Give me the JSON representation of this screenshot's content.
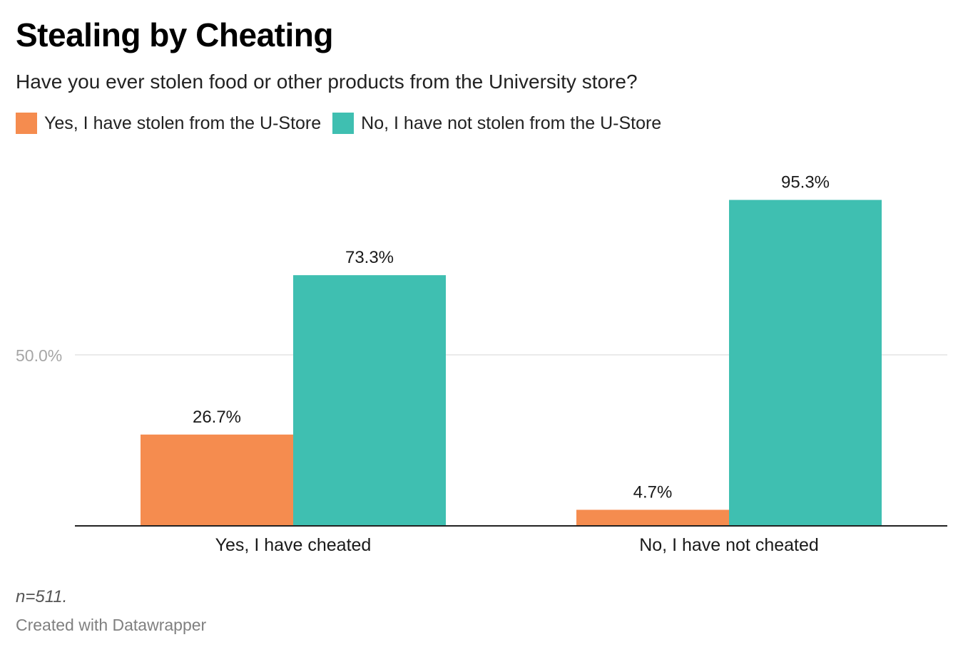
{
  "header": {
    "title": "Stealing by Cheating",
    "subtitle": "Have you ever stolen food or other products from the University store?"
  },
  "footer": {
    "note": "n=511.",
    "credit": "Created with Datawrapper"
  },
  "chart_data": {
    "type": "bar",
    "orientation": "vertical-grouped",
    "categories": [
      "Yes, I have cheated",
      "No, I have not cheated"
    ],
    "series": [
      {
        "name": "Yes, I have stolen from the U-Store",
        "color": "#f58c4f",
        "values": [
          26.7,
          4.7
        ],
        "labels": [
          "26.7%",
          "4.7%"
        ]
      },
      {
        "name": "No, I have not stolen from the U-Store",
        "color": "#3fbfb1",
        "values": [
          73.3,
          95.3
        ],
        "labels": [
          "73.3%",
          "95.3%"
        ]
      }
    ],
    "ylim": [
      0,
      100
    ],
    "yticks": [
      50
    ],
    "ytick_labels": [
      "50.0%"
    ],
    "grid": true,
    "legend": "top-left"
  }
}
